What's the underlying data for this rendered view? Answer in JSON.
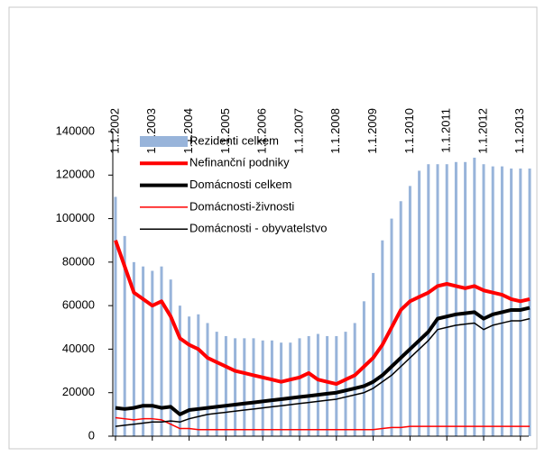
{
  "chart_data": {
    "type": "bar_line",
    "categories": [
      "1.1.2002",
      null,
      null,
      null,
      "1.1.2003",
      null,
      null,
      null,
      "1.1.2004",
      null,
      null,
      null,
      "1.1.2005",
      null,
      null,
      null,
      "1.1.2006",
      null,
      null,
      null,
      "1.1.2007",
      null,
      null,
      null,
      "1.1.2008",
      null,
      null,
      null,
      "1.1.2009",
      null,
      null,
      null,
      "1.1.2010",
      null,
      null,
      null,
      "1.1.2011",
      null,
      null,
      null,
      "1.1.2012",
      null,
      null,
      null,
      "1.1.2013",
      null
    ],
    "series": [
      {
        "name": "Rezidenti celkem",
        "kind": "bar",
        "color": "#98b4da",
        "values": [
          110000,
          92000,
          80000,
          78000,
          76000,
          78000,
          72000,
          60000,
          55000,
          56000,
          52000,
          48000,
          46000,
          45000,
          45000,
          45000,
          44000,
          44000,
          43000,
          43000,
          45000,
          46000,
          47000,
          46000,
          46000,
          48000,
          52000,
          62000,
          75000,
          90000,
          100000,
          108000,
          115000,
          122000,
          125000,
          125000,
          125000,
          126000,
          126000,
          128000,
          125000,
          124000,
          124000,
          123000,
          123000,
          123000
        ]
      },
      {
        "name": "Nefinanční podniky",
        "kind": "line",
        "color": "#ff0000",
        "width": 4,
        "values": [
          90000,
          78000,
          66000,
          63000,
          60000,
          62000,
          55000,
          45000,
          42000,
          40000,
          36000,
          34000,
          32000,
          30000,
          29000,
          28000,
          27000,
          26000,
          25000,
          26000,
          27000,
          29000,
          26000,
          25000,
          24000,
          26000,
          28000,
          32000,
          36000,
          42000,
          50000,
          58000,
          62000,
          64000,
          66000,
          69000,
          70000,
          69000,
          68000,
          69000,
          67000,
          66000,
          65000,
          63000,
          62000,
          63000
        ]
      },
      {
        "name": "Domácnosti celkem",
        "kind": "line",
        "color": "#000000",
        "width": 4,
        "values": [
          13000,
          12500,
          13000,
          14000,
          14000,
          13000,
          13500,
          10000,
          12000,
          12500,
          13000,
          13500,
          14000,
          14500,
          15000,
          15500,
          16000,
          16500,
          17000,
          17500,
          18000,
          18500,
          19000,
          19500,
          20000,
          21000,
          22000,
          23000,
          25000,
          28000,
          32000,
          36000,
          40000,
          44000,
          48000,
          54000,
          55000,
          56000,
          56500,
          57000,
          54000,
          56000,
          57000,
          58000,
          58000,
          59000
        ]
      },
      {
        "name": "Domácnosti-živnosti",
        "kind": "line",
        "color": "#ff0000",
        "width": 1.5,
        "values": [
          8500,
          8000,
          7500,
          8000,
          8000,
          7500,
          5500,
          3500,
          3500,
          3000,
          3000,
          3000,
          3000,
          3000,
          3000,
          3000,
          3000,
          3000,
          3000,
          3000,
          3000,
          3000,
          3000,
          3000,
          3000,
          3000,
          3000,
          3000,
          3000,
          3500,
          4000,
          4000,
          4500,
          4500,
          4500,
          4500,
          4500,
          4500,
          4500,
          4500,
          4500,
          4500,
          4500,
          4500,
          4500,
          4500
        ]
      },
      {
        "name": "Domácnosti - obyvatelstvo",
        "kind": "line",
        "color": "#000000",
        "width": 1.5,
        "values": [
          4500,
          5000,
          5500,
          6000,
          6500,
          6500,
          7000,
          6500,
          8000,
          9000,
          10000,
          10500,
          11000,
          11500,
          12000,
          12500,
          13000,
          13500,
          14000,
          14500,
          15000,
          15500,
          16000,
          16500,
          17000,
          18000,
          19000,
          20000,
          22000,
          25000,
          28000,
          32000,
          36000,
          40000,
          44000,
          49000,
          50000,
          51000,
          51500,
          52000,
          49000,
          51000,
          52000,
          53000,
          53000,
          54000
        ]
      }
    ],
    "ylim": [
      0,
      140000
    ],
    "yticks": [
      0,
      20000,
      40000,
      60000,
      80000,
      100000,
      120000,
      140000
    ]
  }
}
